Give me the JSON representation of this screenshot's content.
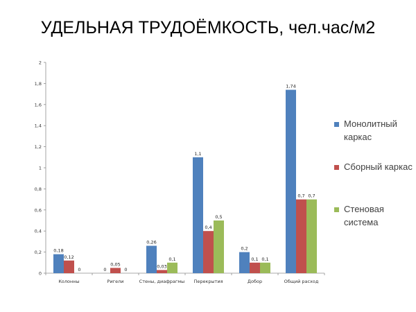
{
  "title": "УДЕЛЬНАЯ ТРУДОЁМКОСТЬ, чел.час/м2",
  "chart_data": {
    "type": "bar",
    "title": "УДЕЛЬНАЯ ТРУДОЁМКОСТЬ, чел.час/м2",
    "xlabel": "",
    "ylabel": "",
    "ylim": [
      0,
      2
    ],
    "yticks": [
      "0",
      "0,2",
      "0,4",
      "0,6",
      "0,8",
      "1",
      "1,2",
      "1,4",
      "1,6",
      "1,8",
      "2"
    ],
    "categories": [
      "Колонны",
      "Ригели",
      "Стены, диафрагмы",
      "Перекрытия",
      "Добор",
      "Общий расход"
    ],
    "series": [
      {
        "name": "Монолитный каркас",
        "color": "#4f81bd",
        "values": [
          0.18,
          0,
          0.26,
          1.1,
          0.2,
          1.74
        ],
        "labels": [
          "0,18",
          "0",
          "0,26",
          "1,1",
          "0,2",
          "1,74"
        ]
      },
      {
        "name": "Сборный каркас",
        "color": "#c0504d",
        "values": [
          0.12,
          0.05,
          0.03,
          0.4,
          0.1,
          0.7
        ],
        "labels": [
          "0,12",
          "0,05",
          "0,03",
          "0,4",
          "0,1",
          "0,7"
        ]
      },
      {
        "name": "Стеновая система",
        "color": "#9bbb59",
        "values": [
          0,
          0,
          0.1,
          0.5,
          0.1,
          0.7
        ],
        "labels": [
          "0",
          "0",
          "0,1",
          "0,5",
          "0,1",
          "0,7"
        ]
      }
    ],
    "grid": false,
    "legend": "right"
  }
}
